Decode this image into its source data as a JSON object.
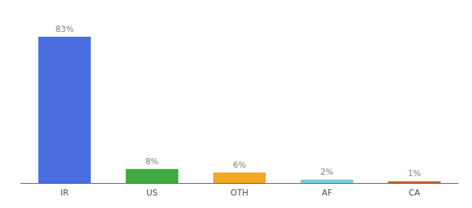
{
  "chart_data": {
    "type": "bar",
    "categories": [
      "IR",
      "US",
      "OTH",
      "AF",
      "CA"
    ],
    "values": [
      83,
      8,
      6,
      2,
      1
    ],
    "value_labels": [
      "83%",
      "8%",
      "6%",
      "2%",
      "1%"
    ],
    "colors": [
      "#4a6ee0",
      "#3dab3d",
      "#f5a623",
      "#7ecae0",
      "#c0622a"
    ],
    "ylim": [
      0,
      92
    ],
    "data_labels": true,
    "tick_labels": "x",
    "grid": false
  }
}
